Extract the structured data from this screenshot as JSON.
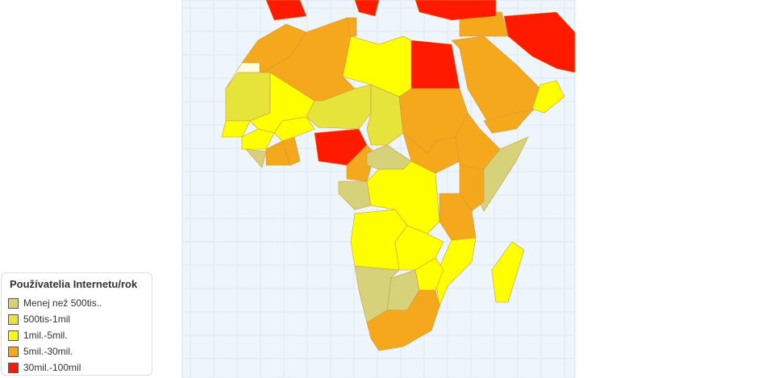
{
  "legend": {
    "title": "Používatelia Internetu/rok",
    "items": [
      {
        "label": "Menej než 500tis..",
        "color": "#d6d27a"
      },
      {
        "label": "500tis-1mil",
        "color": "#e6e33a"
      },
      {
        "label": "1mil.-5mil.",
        "color": "#ffff00"
      },
      {
        "label": "5mil.-30mil.",
        "color": "#f5a81c"
      },
      {
        "label": "30mil.-100mil",
        "color": "#ff1a00"
      }
    ]
  },
  "map": {
    "background": "#eef5fb",
    "no_data_color": "#fffde0",
    "regions": [
      {
        "name": "Morocco",
        "cat": 3
      },
      {
        "name": "Western Sahara",
        "cat": -1
      },
      {
        "name": "Algeria",
        "cat": 3
      },
      {
        "name": "Tunisia",
        "cat": 3
      },
      {
        "name": "Libya",
        "cat": 2
      },
      {
        "name": "Egypt",
        "cat": 4
      },
      {
        "name": "Mauritania",
        "cat": 1
      },
      {
        "name": "Mali",
        "cat": 2
      },
      {
        "name": "Niger",
        "cat": 1
      },
      {
        "name": "Chad",
        "cat": 1
      },
      {
        "name": "Sudan",
        "cat": 3
      },
      {
        "name": "South Sudan",
        "cat": 3
      },
      {
        "name": "Ethiopia",
        "cat": 3
      },
      {
        "name": "Somalia",
        "cat": 0
      },
      {
        "name": "Kenya",
        "cat": 3
      },
      {
        "name": "Tanzania",
        "cat": 3
      },
      {
        "name": "Nigeria",
        "cat": 4
      },
      {
        "name": "Cameroon",
        "cat": 3
      },
      {
        "name": "Central African Republic",
        "cat": 0
      },
      {
        "name": "DR Congo",
        "cat": 2
      },
      {
        "name": "Congo/Gabon",
        "cat": 0
      },
      {
        "name": "Angola",
        "cat": 2
      },
      {
        "name": "Zambia",
        "cat": 2
      },
      {
        "name": "Mozambique",
        "cat": 2
      },
      {
        "name": "Zimbabwe",
        "cat": 2
      },
      {
        "name": "Namibia",
        "cat": 0
      },
      {
        "name": "Botswana",
        "cat": 0
      },
      {
        "name": "South Africa",
        "cat": 3
      },
      {
        "name": "Madagascar",
        "cat": 2
      },
      {
        "name": "Senegal",
        "cat": 2
      },
      {
        "name": "Guinea",
        "cat": 2
      },
      {
        "name": "Cote d'Ivoire",
        "cat": 3
      },
      {
        "name": "Ghana",
        "cat": 3
      },
      {
        "name": "Burkina Faso",
        "cat": 2
      },
      {
        "name": "Liberia/Sierra Leone",
        "cat": 0
      },
      {
        "name": "Saudi Arabia",
        "cat": 3
      },
      {
        "name": "Iran",
        "cat": 4
      },
      {
        "name": "Oman",
        "cat": 2
      },
      {
        "name": "Yemen",
        "cat": 3
      },
      {
        "name": "Iraq/Syria",
        "cat": 3
      },
      {
        "name": "Spain",
        "cat": 4
      },
      {
        "name": "Italy",
        "cat": 4
      },
      {
        "name": "Turkey",
        "cat": 4
      }
    ]
  }
}
